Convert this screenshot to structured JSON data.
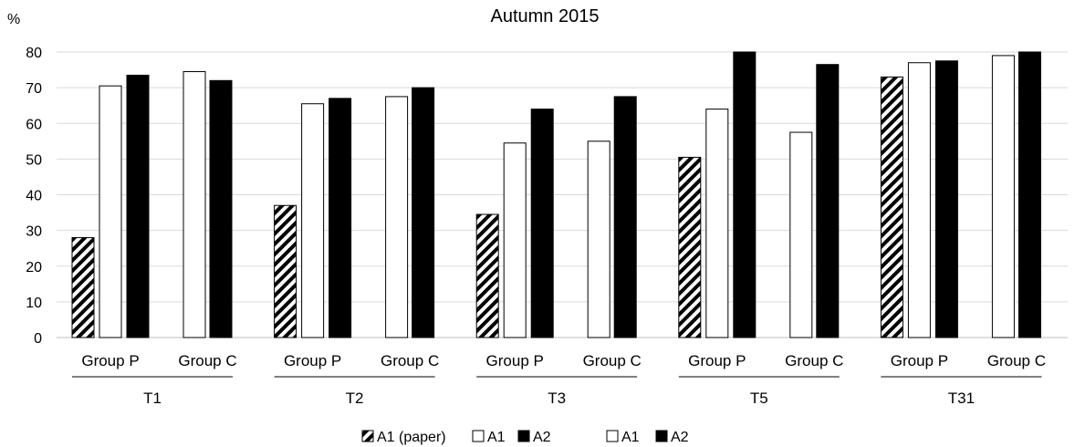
{
  "chart_data": {
    "type": "bar",
    "title": "Autumn 2015",
    "ylabel": "%",
    "xlabel": "",
    "ylim": [
      0,
      80
    ],
    "yticks": [
      0,
      10,
      20,
      30,
      40,
      50,
      60,
      70,
      80
    ],
    "grid": true,
    "legend_position": "bottom-center",
    "periods": [
      "T1",
      "T2",
      "T3",
      "T5",
      "T31"
    ],
    "groups": [
      {
        "period": "T1",
        "subgroups": [
          {
            "label": "Group P",
            "values": [
              {
                "series": "A1 (paper)",
                "value": 28
              },
              {
                "series": "A1",
                "value": 70.5
              },
              {
                "series": "A2",
                "value": 73.5
              }
            ]
          },
          {
            "label": "Group C",
            "values": [
              {
                "series": "A1",
                "value": 74.5
              },
              {
                "series": "A2",
                "value": 72
              }
            ]
          }
        ]
      },
      {
        "period": "T2",
        "subgroups": [
          {
            "label": "Group P",
            "values": [
              {
                "series": "A1 (paper)",
                "value": 37
              },
              {
                "series": "A1",
                "value": 65.5
              },
              {
                "series": "A2",
                "value": 67
              }
            ]
          },
          {
            "label": "Group C",
            "values": [
              {
                "series": "A1",
                "value": 67.5
              },
              {
                "series": "A2",
                "value": 70
              }
            ]
          }
        ]
      },
      {
        "period": "T3",
        "subgroups": [
          {
            "label": "Group P",
            "values": [
              {
                "series": "A1 (paper)",
                "value": 34.5
              },
              {
                "series": "A1",
                "value": 54.5
              },
              {
                "series": "A2",
                "value": 64
              }
            ]
          },
          {
            "label": "Group C",
            "values": [
              {
                "series": "A1",
                "value": 55
              },
              {
                "series": "A2",
                "value": 67.5
              }
            ]
          }
        ]
      },
      {
        "period": "T5",
        "subgroups": [
          {
            "label": "Group P",
            "values": [
              {
                "series": "A1 (paper)",
                "value": 50.5
              },
              {
                "series": "A1",
                "value": 64
              },
              {
                "series": "A2",
                "value": 80
              }
            ]
          },
          {
            "label": "Group C",
            "values": [
              {
                "series": "A1",
                "value": 57.5
              },
              {
                "series": "A2",
                "value": 76.5
              }
            ]
          }
        ]
      },
      {
        "period": "T31",
        "subgroups": [
          {
            "label": "Group P",
            "values": [
              {
                "series": "A1 (paper)",
                "value": 73
              },
              {
                "series": "A1",
                "value": 77
              },
              {
                "series": "A2",
                "value": 77.5
              }
            ]
          },
          {
            "label": "Group C",
            "values": [
              {
                "series": "A1",
                "value": 79
              },
              {
                "series": "A2",
                "value": 80
              }
            ]
          }
        ]
      }
    ],
    "legend": [
      {
        "label": "A1 (paper)",
        "style": "hatched"
      },
      {
        "label": "A1",
        "style": "white"
      },
      {
        "label": "A2",
        "style": "black"
      },
      {
        "label": "A1",
        "style": "white"
      },
      {
        "label": "A2",
        "style": "black"
      }
    ],
    "colors": {
      "fill_white": "#ffffff",
      "fill_black": "#000000",
      "stroke": "#000000",
      "grid": "#d9d9d9"
    }
  }
}
